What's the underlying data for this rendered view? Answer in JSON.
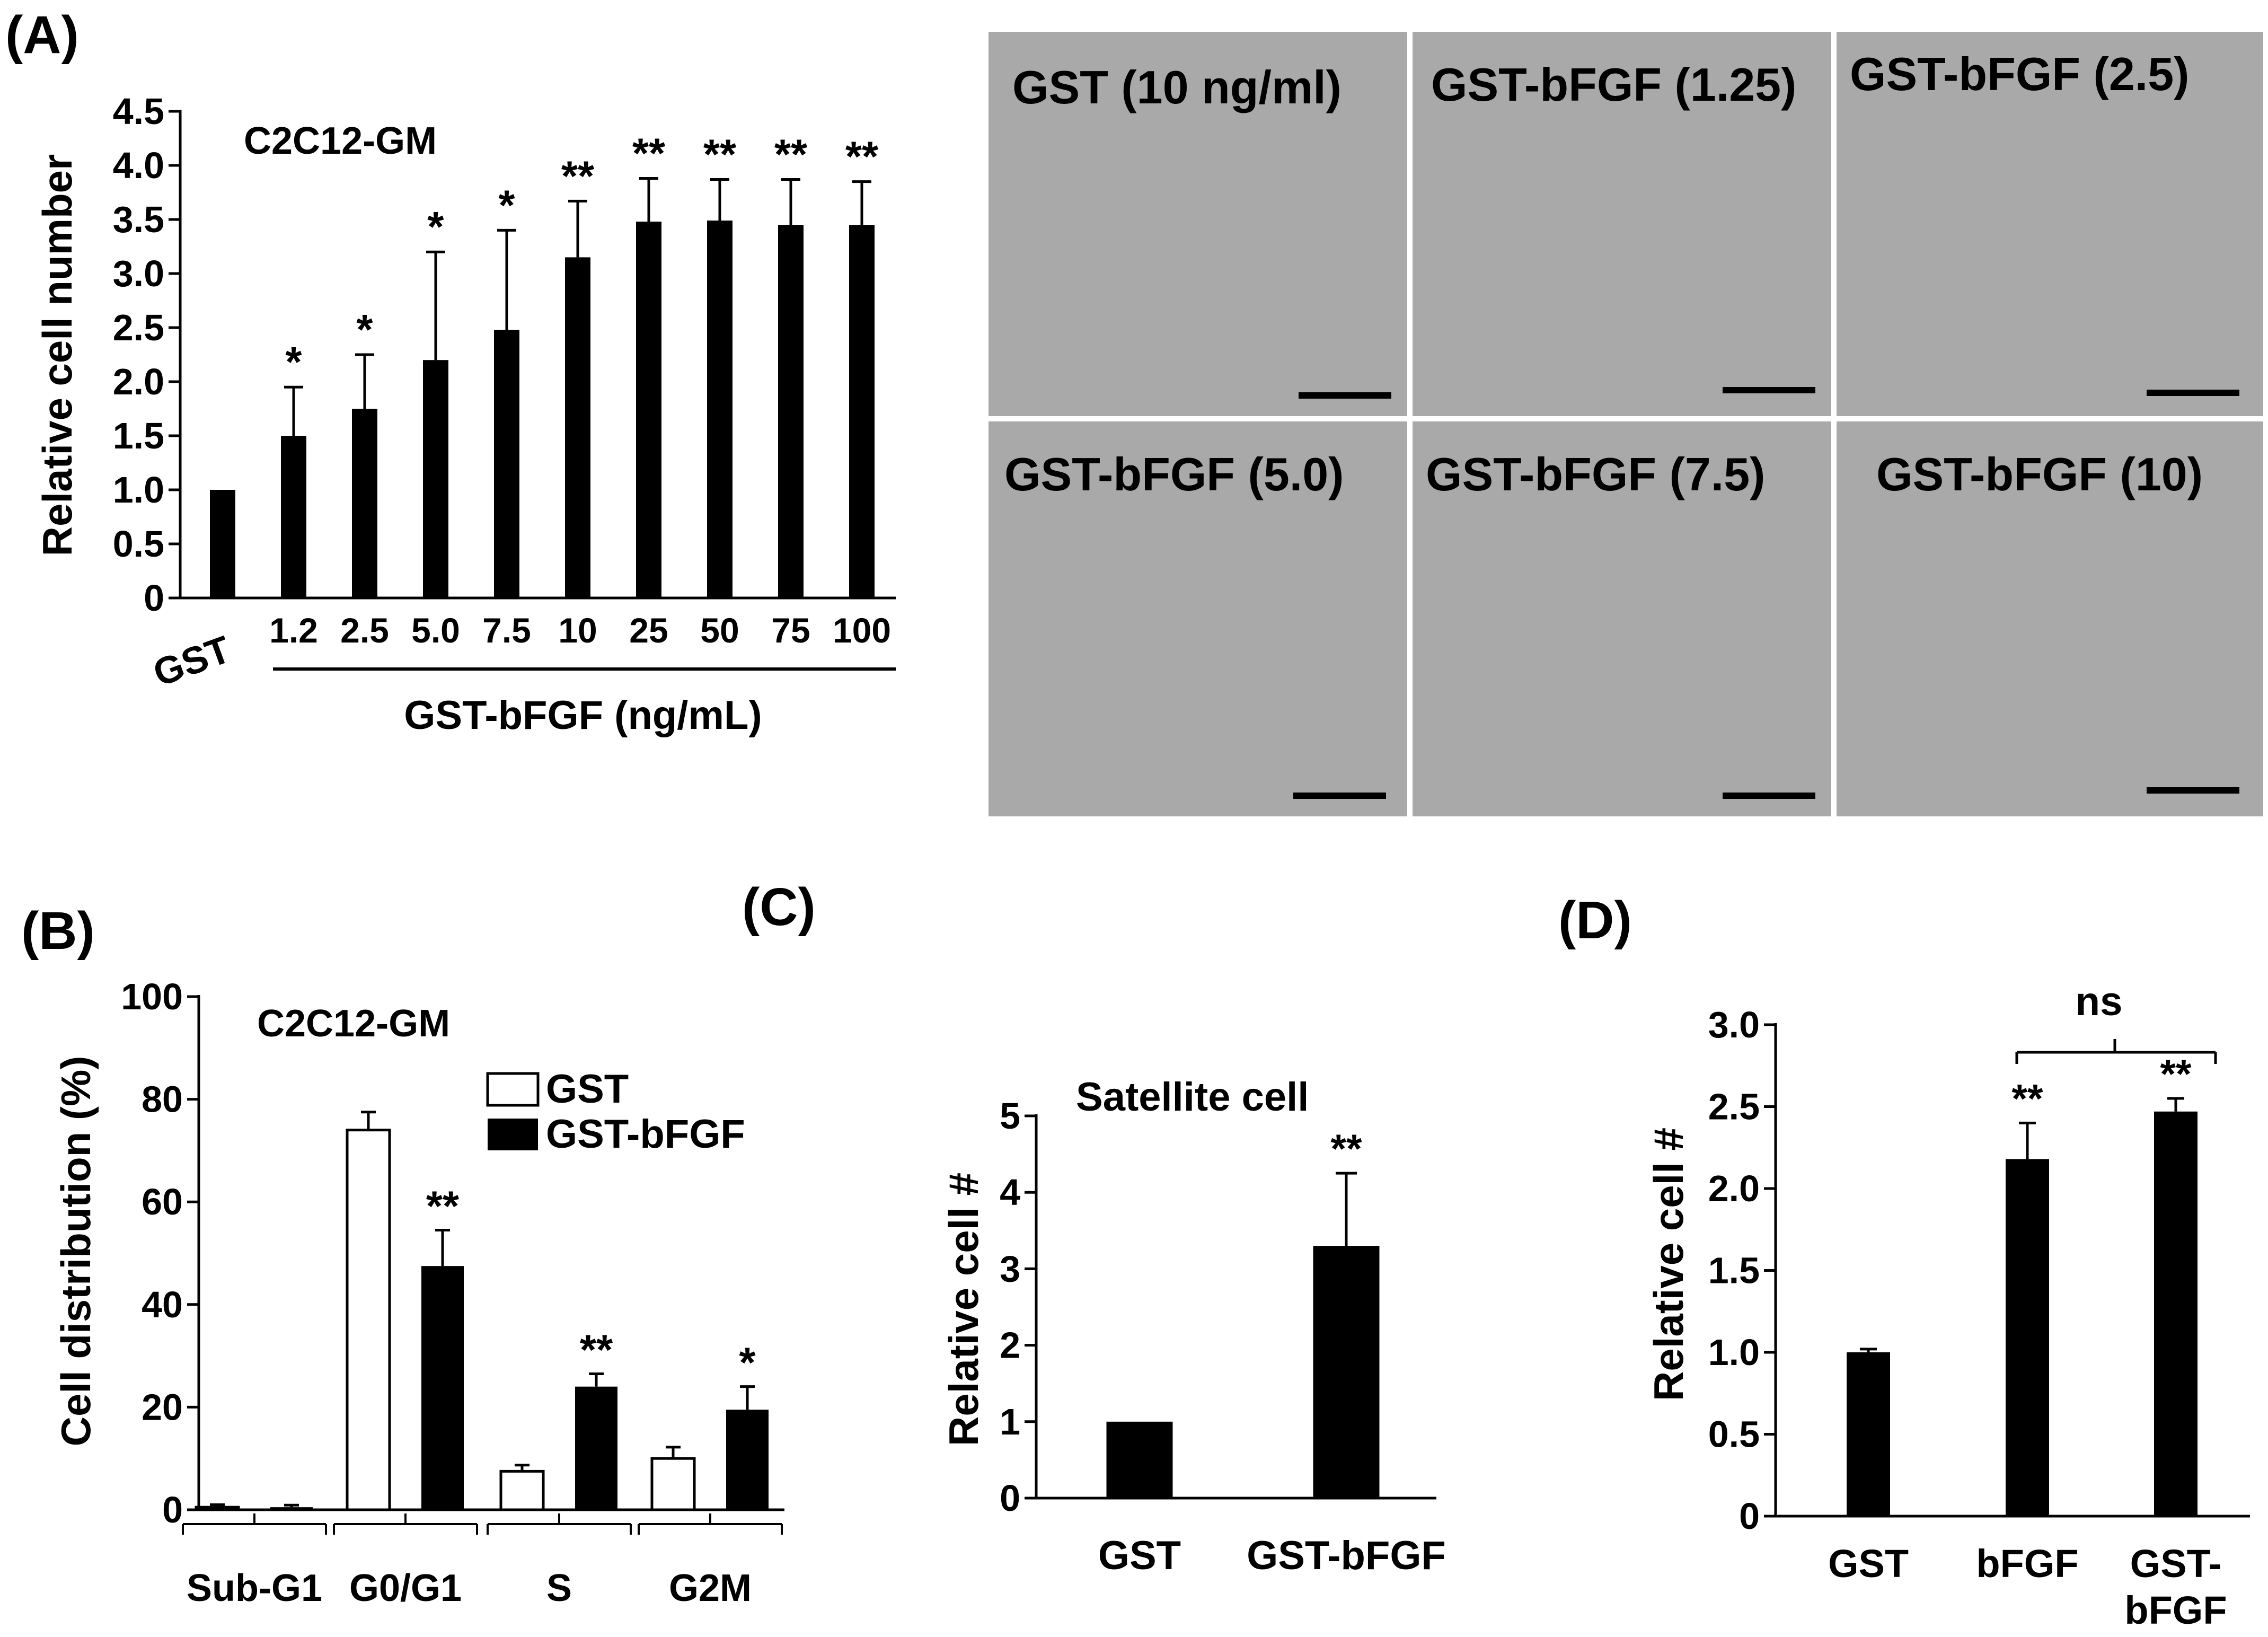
{
  "panels": {
    "A": {
      "letter": "(A)"
    },
    "B": {
      "letter": "(B)"
    },
    "C": {
      "letter": "(C)"
    },
    "D": {
      "letter": "(D)"
    }
  },
  "micrographs": {
    "labels": [
      "GST (10 ng/ml)",
      "GST-bFGF (1.25)",
      "GST-bFGF (2.5)",
      "GST-bFGF (5.0)",
      "GST-bFGF (7.5)",
      "GST-bFGF (10)"
    ]
  },
  "chart_data": [
    {
      "id": "A",
      "type": "bar",
      "title": "C2C12-GM",
      "ylabel": "Relative cell number",
      "xlabel": "GST-bFGF (ng/mL)",
      "ylim": [
        0,
        4.5
      ],
      "yticks": [
        "0",
        "0.5",
        "1.0",
        "1.5",
        "2.0",
        "2.5",
        "3.0",
        "3.5",
        "4.0",
        "4.5"
      ],
      "categories": [
        "GST",
        "1.2",
        "2.5",
        "5.0",
        "7.5",
        "10",
        "25",
        "50",
        "75",
        "100"
      ],
      "values": [
        1.0,
        1.5,
        1.75,
        2.2,
        2.48,
        3.15,
        3.48,
        3.49,
        3.45,
        3.45
      ],
      "errors": [
        0.0,
        0.45,
        0.5,
        1.0,
        0.92,
        0.52,
        0.4,
        0.38,
        0.42,
        0.4
      ],
      "significance": [
        "",
        "*",
        "*",
        "*",
        "*",
        "**",
        "**",
        "**",
        "**",
        "**"
      ]
    },
    {
      "id": "B",
      "type": "bar",
      "title": "C2C12-GM",
      "ylabel": "Cell distribution (%)",
      "ylim": [
        0,
        100
      ],
      "yticks": [
        "0",
        "20",
        "40",
        "60",
        "80",
        "100"
      ],
      "categories": [
        "Sub-G1",
        "G0/G1",
        "S",
        "G2M"
      ],
      "series": [
        {
          "name": "GST",
          "values": [
            0.5,
            74,
            7.5,
            10
          ],
          "errors": [
            0.5,
            3.5,
            1.2,
            2.2
          ],
          "significance": [
            "",
            "",
            "",
            ""
          ]
        },
        {
          "name": "GST-bFGF",
          "values": [
            0.5,
            47.5,
            24,
            19.5
          ],
          "errors": [
            0.4,
            7,
            2.5,
            4.5
          ],
          "significance": [
            "",
            "**",
            "**",
            "*"
          ]
        }
      ]
    },
    {
      "id": "C",
      "type": "bar",
      "title": "Satellite cell",
      "ylabel": "Relative cell #",
      "ylim": [
        0,
        5
      ],
      "yticks": [
        "0",
        "1",
        "2",
        "3",
        "4",
        "5"
      ],
      "categories": [
        "GST",
        "GST-bFGF"
      ],
      "values": [
        1.0,
        3.3
      ],
      "errors": [
        0.0,
        0.95
      ],
      "significance": [
        "",
        "**"
      ]
    },
    {
      "id": "D",
      "type": "bar",
      "title": "",
      "ylabel": "Relative cell #",
      "ylim": [
        0,
        3.0
      ],
      "yticks": [
        "0",
        "0.5",
        "1.0",
        "1.5",
        "2.0",
        "2.5",
        "3.0"
      ],
      "categories": [
        "GST",
        "bFGF",
        "GST-\nbFGF"
      ],
      "values": [
        1.0,
        2.18,
        2.47
      ],
      "errors": [
        0.02,
        0.22,
        0.08
      ],
      "significance": [
        "",
        "**",
        "**"
      ],
      "comparison": "ns"
    }
  ]
}
